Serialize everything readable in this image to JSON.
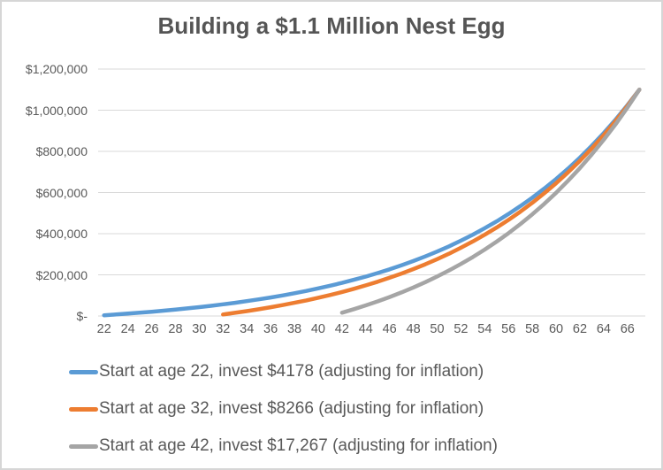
{
  "chart_data": {
    "type": "line",
    "title": "Building a $1.1 Million Nest Egg",
    "xlabel": "",
    "ylabel": "",
    "x_range": [
      22,
      67
    ],
    "ylim": [
      0,
      1200000
    ],
    "grid": "horizontal",
    "gridline_color": "#d9d9d9",
    "legend_position": "bottom-left",
    "x_ticks": [
      22,
      24,
      26,
      28,
      30,
      32,
      34,
      36,
      38,
      40,
      42,
      44,
      46,
      48,
      50,
      52,
      54,
      56,
      58,
      60,
      62,
      64,
      66
    ],
    "y_ticks": [
      {
        "label": "$1,200,000",
        "value": 1200000
      },
      {
        "label": "$1,000,000",
        "value": 1000000
      },
      {
        "label": "$800,000",
        "value": 800000
      },
      {
        "label": "$600,000",
        "value": 600000
      },
      {
        "label": "$400,000",
        "value": 400000
      },
      {
        "label": "$200,000",
        "value": 200000
      },
      {
        "label": "$-",
        "value": 0
      }
    ],
    "series": [
      {
        "name": "Start at age 22, invest $4178 (adjusting for inflation)",
        "color": "#5b9bd5",
        "start_age": 22,
        "annual_investment": 4178,
        "ages": [
          22,
          23,
          24,
          25,
          26,
          27,
          28,
          29,
          30,
          31,
          32,
          33,
          34,
          35,
          36,
          37,
          38,
          39,
          40,
          41,
          42,
          43,
          44,
          45,
          46,
          47,
          48,
          49,
          50,
          51,
          52,
          53,
          54,
          55,
          56,
          57,
          58,
          59,
          60,
          61,
          62,
          63,
          64,
          65,
          66,
          67
        ],
        "values": [
          3600,
          7400,
          11500,
          15900,
          20600,
          25700,
          31000,
          36800,
          43000,
          49500,
          56600,
          64100,
          72200,
          80900,
          90100,
          100000,
          110600,
          121900,
          134000,
          147000,
          160900,
          175700,
          191600,
          208600,
          226800,
          246300,
          267100,
          289400,
          313200,
          338700,
          366000,
          395200,
          426500,
          459900,
          495700,
          534000,
          575000,
          618800,
          665700,
          715900,
          769600,
          827000,
          888500,
          954300,
          1024700,
          1100000
        ]
      },
      {
        "name": "Start at age 32, invest $8266 (adjusting for inflation)",
        "color": "#ed7d31",
        "start_age": 32,
        "annual_investment": 8266,
        "ages": [
          32,
          33,
          34,
          35,
          36,
          37,
          38,
          39,
          40,
          41,
          42,
          43,
          44,
          45,
          46,
          47,
          48,
          49,
          50,
          51,
          52,
          53,
          54,
          55,
          56,
          57,
          58,
          59,
          60,
          61,
          62,
          63,
          64,
          65,
          66,
          67
        ],
        "values": [
          7400,
          15300,
          23700,
          32800,
          42500,
          52800,
          63900,
          75800,
          88500,
          102100,
          116600,
          132100,
          148800,
          166600,
          185600,
          206000,
          227800,
          251100,
          276100,
          302800,
          331400,
          362000,
          394700,
          429700,
          467200,
          507300,
          550200,
          596100,
          645200,
          697700,
          753900,
          814100,
          878500,
          947400,
          1021100,
          1100000
        ]
      },
      {
        "name": "Start at age 42, invest $17,267 (adjusting for inflation)",
        "color": "#a5a5a5",
        "start_age": 42,
        "annual_investment": 17267,
        "ages": [
          42,
          43,
          44,
          45,
          46,
          47,
          48,
          49,
          50,
          51,
          52,
          53,
          54,
          55,
          56,
          57,
          58,
          59,
          60,
          61,
          62,
          63,
          64,
          65,
          66,
          67
        ],
        "values": [
          16000,
          33200,
          51500,
          71100,
          92100,
          114600,
          138600,
          164300,
          191900,
          221300,
          252800,
          286500,
          322600,
          361200,
          402500,
          446700,
          494000,
          544600,
          598700,
          656600,
          718600,
          784900,
          855900,
          931800,
          1013100,
          1100000
        ]
      }
    ]
  }
}
